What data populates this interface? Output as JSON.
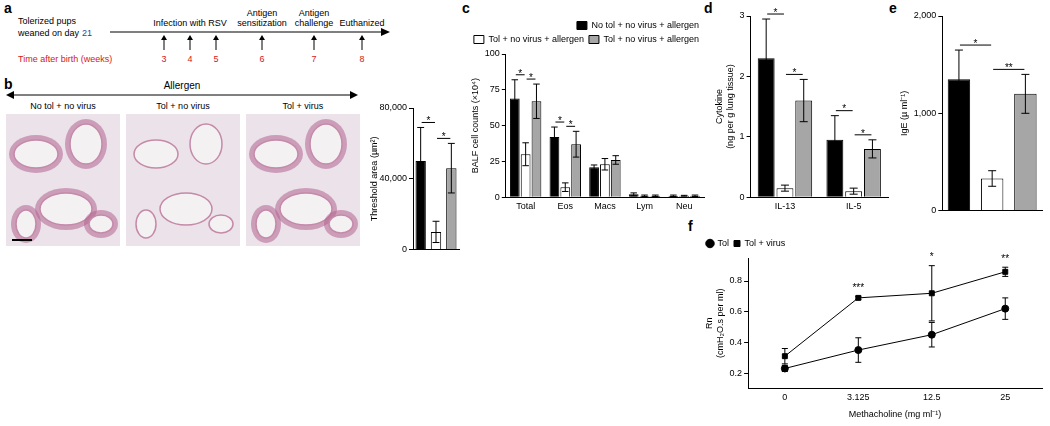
{
  "figure": {
    "panel_labels": [
      "a",
      "b",
      "c",
      "d",
      "e",
      "f"
    ]
  },
  "timeline": {
    "start_lines": [
      "Tolerized pups",
      "weaned on day"
    ],
    "start_day": "21",
    "axis_label": "Time after birth (weeks)",
    "events": [
      {
        "label": [
          "Infection with RSV"
        ],
        "weeks": [
          3,
          4,
          5
        ]
      },
      {
        "label": [
          "Antigen",
          "sensitization"
        ],
        "weeks": [
          6
        ]
      },
      {
        "label": [
          "Antigen",
          "challenge"
        ],
        "weeks": [
          7
        ]
      },
      {
        "label": [
          "Euthanized"
        ],
        "weeks": [
          8
        ]
      }
    ]
  },
  "histology": {
    "group_label": "Allergen",
    "images": [
      "No tol + no virus",
      "Tol + no virus",
      "Tol + virus"
    ]
  },
  "chart_data": [
    {
      "type": "bar",
      "categories": [
        null,
        null,
        null
      ],
      "values": [
        50000,
        10000,
        46000
      ],
      "errors": [
        19000,
        6000,
        14000
      ],
      "colors": [
        "#000000",
        "#ffffff",
        "#a6a6a6"
      ],
      "y_label": "Threshold area (µm²)",
      "ylim": [
        0,
        80000
      ],
      "yticks": [
        0,
        {
          "value": 40000,
          "label": "40,000"
        },
        {
          "value": 80000,
          "label": "80,000"
        }
      ],
      "grid": false,
      "tick_labels": "y",
      "annotations": [
        {
          "text": "*",
          "between": [
            0,
            1
          ]
        },
        {
          "text": "*",
          "between": [
            1,
            2
          ]
        }
      ]
    },
    {
      "type": "bar",
      "categories": [
        "Total",
        "Eos",
        "Macs",
        "Lym",
        "Neu"
      ],
      "series": [
        {
          "name": "No tol + no virus + allergen",
          "color": "#000000",
          "values": [
            69,
            42,
            21,
            2,
            1
          ],
          "errors": [
            13,
            7,
            1.5,
            1,
            0.5
          ]
        },
        {
          "name": "Tol + no virus + allergen",
          "color": "#ffffff",
          "values": [
            30,
            7,
            23,
            1,
            1
          ],
          "errors": [
            8,
            3,
            4,
            0.5,
            0.3
          ]
        },
        {
          "name": "Tol + no virus + allergen",
          "color": "#a6a6a6",
          "values": [
            67,
            37,
            26,
            1,
            1
          ],
          "errors": [
            12,
            9,
            3,
            0.5,
            0.5
          ]
        }
      ],
      "y_label": "BALF cell counts (×10⁴)",
      "ylim": [
        0,
        100
      ],
      "yticks": [
        0,
        25,
        50,
        75,
        100
      ],
      "grid": false,
      "legend": "top-right",
      "annotations": [
        {
          "text": "*",
          "category": "Total",
          "between": [
            0,
            1
          ]
        },
        {
          "text": "*",
          "category": "Total",
          "between": [
            1,
            2
          ]
        },
        {
          "text": "*",
          "category": "Eos",
          "between": [
            0,
            1
          ]
        },
        {
          "text": "*",
          "category": "Eos",
          "between": [
            1,
            2
          ]
        }
      ]
    },
    {
      "type": "bar",
      "categories": [
        "IL-13",
        "IL-5"
      ],
      "series": [
        {
          "color": "#000000",
          "values": [
            2.3,
            0.95
          ],
          "errors": [
            0.65,
            0.4
          ]
        },
        {
          "color": "#ffffff",
          "values": [
            0.15,
            0.1
          ],
          "errors": [
            0.05,
            0.05
          ]
        },
        {
          "color": "#a6a6a6",
          "values": [
            1.6,
            0.8
          ],
          "errors": [
            0.35,
            0.15
          ]
        }
      ],
      "y_label": [
        "Cytokine",
        "(ng per g lung tissue)"
      ],
      "ylim": [
        0,
        3
      ],
      "yticks": [
        0,
        1,
        2,
        3
      ],
      "grid": false,
      "annotations": [
        {
          "text": "*",
          "category": "IL-13",
          "between": [
            0,
            1
          ]
        },
        {
          "text": "*",
          "category": "IL-13",
          "between": [
            1,
            2
          ]
        },
        {
          "text": "*",
          "category": "IL-5",
          "between": [
            0,
            1
          ]
        },
        {
          "text": "*",
          "category": "IL-5",
          "between": [
            1,
            2
          ]
        }
      ]
    },
    {
      "type": "bar",
      "categories": [
        null,
        null,
        null
      ],
      "values": [
        1350,
        330,
        1200
      ],
      "errors": [
        300,
        80,
        200
      ],
      "colors": [
        "#000000",
        "#ffffff",
        "#a6a6a6"
      ],
      "y_label": "IgE (µ ml⁻¹)",
      "ylim": [
        0,
        2000
      ],
      "yticks": [
        0,
        {
          "value": 1000,
          "label": "1,000"
        },
        {
          "value": 2000,
          "label": "2,000"
        }
      ],
      "grid": false,
      "tick_labels": "y",
      "annotations": [
        {
          "text": "*",
          "between": [
            0,
            1
          ]
        },
        {
          "text": "**",
          "between": [
            1,
            2
          ]
        }
      ]
    },
    {
      "type": "line",
      "categories": [
        "0",
        "3.125",
        "12.5",
        "25"
      ],
      "series": [
        {
          "name": "Tol",
          "color": "#000000",
          "marker": "circle",
          "line_style": "solid",
          "values": [
            0.23,
            0.35,
            0.45,
            0.62
          ],
          "errors": [
            0.02,
            0.08,
            0.08,
            0.07
          ]
        },
        {
          "name": "Tol + virus",
          "color": "#000000",
          "marker": "square",
          "line_style": "solid",
          "values": [
            0.31,
            0.69,
            0.72,
            0.86
          ],
          "errors": [
            0.05,
            0.01,
            0.18,
            0.03
          ]
        }
      ],
      "x_label": "Methacholine (mg ml⁻¹)",
      "y_label": [
        "Rn",
        "(cmH₂O.s per ml)"
      ],
      "ylim": [
        0.1,
        0.95
      ],
      "yticks": [
        0.2,
        0.4,
        0.6,
        0.8
      ],
      "grid": false,
      "legend": "top-left",
      "annotations": [
        {
          "text": "***",
          "category": "3.125"
        },
        {
          "text": "*",
          "category": "12.5"
        },
        {
          "text": "**",
          "category": "25"
        }
      ]
    }
  ]
}
